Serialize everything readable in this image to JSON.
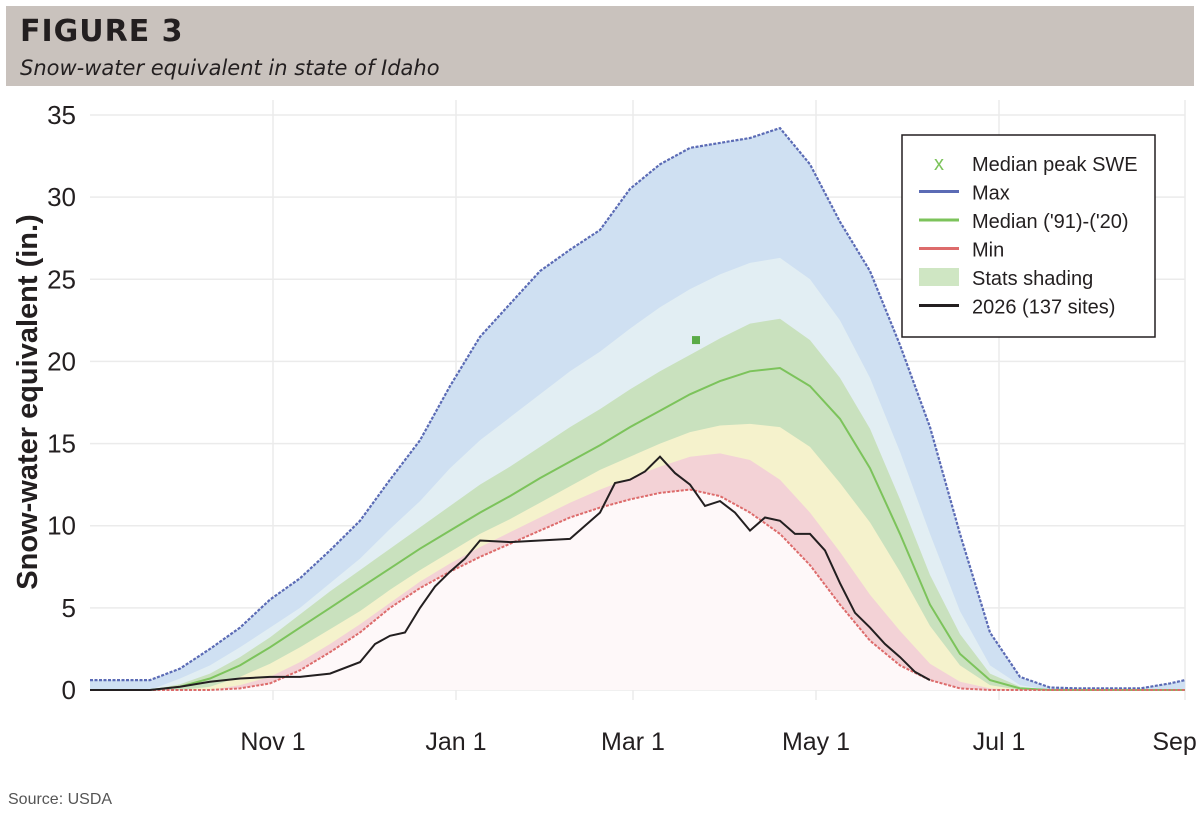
{
  "header": {
    "figure_label": "FIGURE 3",
    "subtitle": "Snow-water equivalent in state of Idaho"
  },
  "source": "Source: USDA",
  "chart_data": {
    "type": "area",
    "title": "",
    "xlabel": "",
    "ylabel": "Snow-water equivalent (in.)",
    "x_unit": "days since Oct 1",
    "xlim": [
      -30,
      335
    ],
    "ylim": [
      0,
      35
    ],
    "yticks": [
      0,
      5,
      10,
      15,
      20,
      25,
      30,
      35
    ],
    "xticks": [
      {
        "label": "Nov 1",
        "day": 31
      },
      {
        "label": "Jan 1",
        "day": 92
      },
      {
        "label": "Mar 1",
        "day": 151
      },
      {
        "label": "May 1",
        "day": 212
      },
      {
        "label": "Jul 1",
        "day": 273
      },
      {
        "label": "Sep 1",
        "day": 335
      }
    ],
    "grid": true,
    "legend_position": "top-right",
    "legend": [
      {
        "label": "Median peak SWE",
        "kind": "marker",
        "color": "#7cc35b"
      },
      {
        "label": "Max",
        "kind": "line",
        "color": "#5b6bb5"
      },
      {
        "label": "Median ('91)-('20)",
        "kind": "line",
        "color": "#7cc35b"
      },
      {
        "label": "Min",
        "kind": "line",
        "color": "#dd6b6b"
      },
      {
        "label": "Stats shading",
        "kind": "band",
        "color": "#cfe6c3"
      },
      {
        "label": "2026 (137 sites)",
        "kind": "line",
        "color": "#231f20"
      }
    ],
    "colors": {
      "max_band": "#cfe0f2",
      "p90_band": "#e2eef3",
      "p70_band": "#c9e1be",
      "median_p30_band": "#f5f2cc",
      "min_band": "#f3d2d6",
      "max_line": "#5b6bb5",
      "median_line": "#7cc35b",
      "min_line": "#dd6b6b",
      "current_line": "#231f20",
      "grid": "#ebebeb"
    },
    "x": [
      -30,
      -20,
      -10,
      0,
      10,
      20,
      30,
      40,
      50,
      60,
      70,
      80,
      90,
      100,
      110,
      120,
      130,
      140,
      150,
      160,
      170,
      180,
      190,
      200,
      210,
      220,
      230,
      240,
      250,
      260,
      270,
      280,
      290,
      300,
      310,
      320,
      330,
      335
    ],
    "series": [
      {
        "name": "Max",
        "values": [
          0.6,
          0.6,
          0.6,
          1.3,
          2.5,
          3.8,
          5.5,
          6.8,
          8.5,
          10.3,
          12.8,
          15.2,
          18.5,
          21.5,
          23.5,
          25.5,
          26.8,
          28,
          30.5,
          32,
          33,
          33.3,
          33.6,
          34.2,
          32,
          28.5,
          25.5,
          21,
          16,
          9.5,
          3.5,
          0.8,
          0.15,
          0.1,
          0.1,
          0.1,
          0.4,
          0.6
        ]
      },
      {
        "name": "Median ('91)-('20)",
        "values": [
          0,
          0,
          0,
          0.2,
          0.7,
          1.5,
          2.6,
          3.8,
          5,
          6.2,
          7.4,
          8.6,
          9.7,
          10.8,
          11.8,
          12.9,
          13.9,
          14.9,
          16,
          17,
          18,
          18.8,
          19.4,
          19.6,
          18.5,
          16.5,
          13.5,
          9.5,
          5.2,
          2.2,
          0.6,
          0.1,
          0,
          0,
          0,
          0,
          0,
          0
        ]
      },
      {
        "name": "Min",
        "values": [
          0,
          0,
          0,
          0,
          0,
          0.1,
          0.4,
          1.2,
          2.3,
          3.5,
          5,
          6.2,
          7.2,
          8.1,
          8.9,
          9.7,
          10.5,
          11.1,
          11.6,
          12,
          12.2,
          11.8,
          10.8,
          9.5,
          7.6,
          5.2,
          3,
          1.5,
          0.6,
          0.1,
          0,
          0,
          0,
          0,
          0,
          0,
          0,
          0
        ]
      },
      {
        "name": "2026 (137 sites)",
        "x": [
          -30,
          -20,
          -10,
          0,
          10,
          20,
          30,
          40,
          50,
          60,
          65,
          70,
          75,
          80,
          85,
          90,
          95,
          100,
          110,
          120,
          130,
          140,
          145,
          150,
          155,
          160,
          165,
          170,
          175,
          180,
          185,
          190,
          195,
          200,
          205,
          210,
          215,
          220,
          225,
          230,
          235,
          240,
          245,
          250
        ],
        "values": [
          0,
          0,
          0,
          0.2,
          0.5,
          0.7,
          0.8,
          0.8,
          1,
          1.7,
          2.8,
          3.3,
          3.5,
          5,
          6.3,
          7.2,
          8,
          9.1,
          9,
          9.1,
          9.2,
          10.8,
          12.6,
          12.8,
          13.3,
          14.2,
          13.2,
          12.5,
          11.2,
          11.5,
          10.8,
          9.7,
          10.5,
          10.3,
          9.5,
          9.5,
          8.5,
          6.5,
          4.7,
          3.8,
          2.8,
          2,
          1.1,
          0.6
        ]
      },
      {
        "name": "Median peak SWE",
        "x": [
          172
        ],
        "values": [
          21.3
        ]
      }
    ],
    "bands": {
      "p90": [
        0,
        0,
        0,
        0.7,
        1.5,
        2.6,
        3.8,
        5,
        6.5,
        8,
        9.8,
        11.5,
        13.5,
        15.2,
        16.6,
        18,
        19.4,
        20.6,
        22,
        23.3,
        24.4,
        25.3,
        26,
        26.3,
        25,
        22.5,
        19,
        14.5,
        9.5,
        4.8,
        1.5,
        0.3,
        0,
        0,
        0,
        0,
        0,
        0
      ],
      "p70": [
        0,
        0,
        0,
        0.35,
        1,
        2,
        3.2,
        4.6,
        6,
        7.3,
        8.6,
        9.9,
        11.2,
        12.5,
        13.6,
        14.8,
        16,
        17.1,
        18.3,
        19.4,
        20.4,
        21.4,
        22.3,
        22.6,
        21.3,
        19,
        15.9,
        11.6,
        7,
        3.4,
        1,
        0.2,
        0,
        0,
        0,
        0,
        0,
        0
      ],
      "p30": [
        0,
        0,
        0,
        0,
        0.2,
        0.8,
        1.6,
        2.6,
        3.7,
        4.8,
        6.1,
        7.3,
        8.4,
        9.5,
        10.4,
        11.4,
        12.4,
        13.4,
        14.2,
        15,
        15.7,
        16.1,
        16.2,
        16,
        14.8,
        12.6,
        10.2,
        7.2,
        3.9,
        1.5,
        0.3,
        0,
        0,
        0,
        0,
        0,
        0,
        0
      ],
      "p10": [
        0,
        0,
        0,
        0,
        0,
        0.3,
        0.8,
        1.7,
        2.8,
        4,
        5.3,
        6.6,
        7.7,
        8.7,
        9.6,
        10.5,
        11.4,
        12.2,
        12.9,
        13.6,
        14.2,
        14.4,
        14,
        12.8,
        10.8,
        8.4,
        5.8,
        3.6,
        1.6,
        0.5,
        0.1,
        0,
        0,
        0,
        0,
        0,
        0,
        0
      ]
    }
  }
}
